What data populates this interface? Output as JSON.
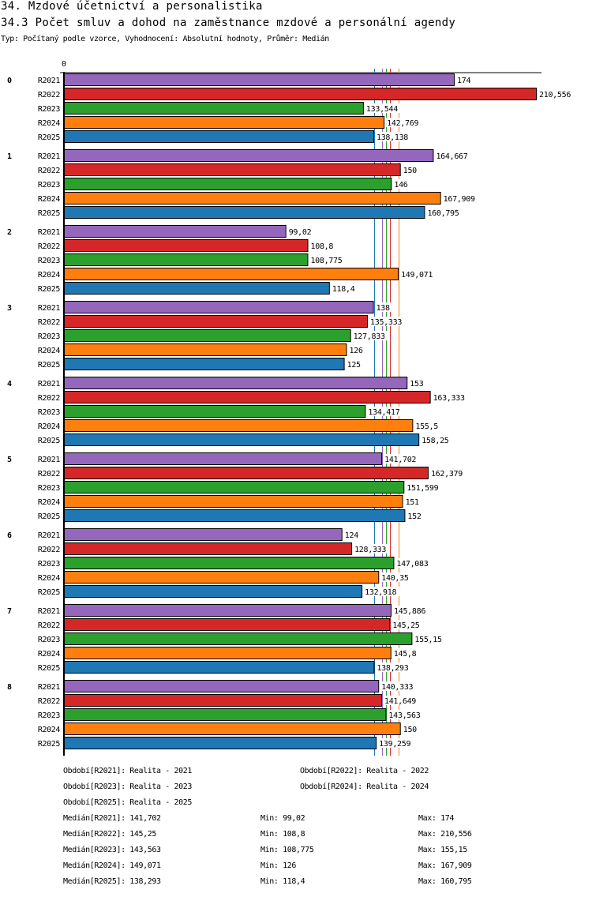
{
  "header": {
    "title": "34. Mzdové účetnictví a personalistika",
    "subtitle": "34.3 Počet smluv a dohod na zaměstnance mzdové a personální agendy",
    "info": "Typ: Počítaný podle vzorce, Vyhodnocení: Absolutní hodnoty, Průměr: Medián"
  },
  "chart_data": {
    "type": "bar",
    "orientation": "horizontal",
    "title": "34.3 Počet smluv a dohod na zaměstnance mzdové a personální agendy",
    "xlabel": "",
    "ylabel": "",
    "xlim": [
      0,
      210.556
    ],
    "x_tick_labels": [
      "0"
    ],
    "grid": false,
    "categories": [
      "0",
      "1",
      "2",
      "3",
      "4",
      "5",
      "6",
      "7",
      "8"
    ],
    "series": [
      {
        "name": "R2021",
        "color": "#9467bd",
        "values": [
          174,
          164.667,
          99.02,
          138,
          153,
          141.702,
          124,
          145.886,
          140.333
        ],
        "labels": [
          "174",
          "164,667",
          "99,02",
          "138",
          "153",
          "141,702",
          "124",
          "145,886",
          "140,333"
        ]
      },
      {
        "name": "R2022",
        "color": "#d62728",
        "values": [
          210.556,
          150,
          108.8,
          135.333,
          163.333,
          162.379,
          128.333,
          145.25,
          141.649
        ],
        "labels": [
          "210,556",
          "150",
          "108,8",
          "135,333",
          "163,333",
          "162,379",
          "128,333",
          "145,25",
          "141,649"
        ]
      },
      {
        "name": "R2023",
        "color": "#2ca02c",
        "values": [
          133.544,
          146,
          108.775,
          127.833,
          134.417,
          151.599,
          147.083,
          155.15,
          143.563
        ],
        "labels": [
          "133,544",
          "146",
          "108,775",
          "127,833",
          "134,417",
          "151,599",
          "147,083",
          "155,15",
          "143,563"
        ]
      },
      {
        "name": "R2024",
        "color": "#ff7f0e",
        "values": [
          142.769,
          167.909,
          149.071,
          126,
          155.5,
          151,
          140.35,
          145.8,
          150
        ],
        "labels": [
          "142,769",
          "167,909",
          "149,071",
          "126",
          "155,5",
          "151",
          "140,35",
          "145,8",
          "150"
        ]
      },
      {
        "name": "R2025",
        "color": "#1f77b4",
        "values": [
          138.138,
          160.795,
          118.4,
          125,
          158.25,
          152,
          132.918,
          138.293,
          139.259
        ],
        "labels": [
          "138,138",
          "160,795",
          "118,4",
          "125",
          "158,25",
          "152",
          "132,918",
          "138,293",
          "139,259"
        ]
      }
    ],
    "median_lines": [
      {
        "series": "R2021",
        "value": 141.702,
        "color": "#9467bd"
      },
      {
        "series": "R2022",
        "value": 145.25,
        "color": "#d62728"
      },
      {
        "series": "R2023",
        "value": 143.563,
        "color": "#2ca02c"
      },
      {
        "series": "R2024",
        "value": 149.071,
        "color": "#ff7f0e"
      },
      {
        "series": "R2025",
        "value": 138.293,
        "color": "#1f77b4"
      }
    ]
  },
  "legend": {
    "periods": [
      "Období[R2021]: Realita - 2021",
      "Období[R2022]: Realita - 2022",
      "Období[R2023]: Realita - 2023",
      "Období[R2024]: Realita - 2024",
      "Období[R2025]: Realita - 2025"
    ],
    "stats": [
      {
        "median": "Medián[R2021]: 141,702",
        "min": "Min: 99,02",
        "max": "Max: 174"
      },
      {
        "median": "Medián[R2022]: 145,25",
        "min": "Min: 108,8",
        "max": "Max: 210,556"
      },
      {
        "median": "Medián[R2023]: 143,563",
        "min": "Min: 108,775",
        "max": "Max: 155,15"
      },
      {
        "median": "Medián[R2024]: 149,071",
        "min": "Min: 126",
        "max": "Max: 167,909"
      },
      {
        "median": "Medián[R2025]: 138,293",
        "min": "Min: 118,4",
        "max": "Max: 160,795"
      }
    ]
  }
}
